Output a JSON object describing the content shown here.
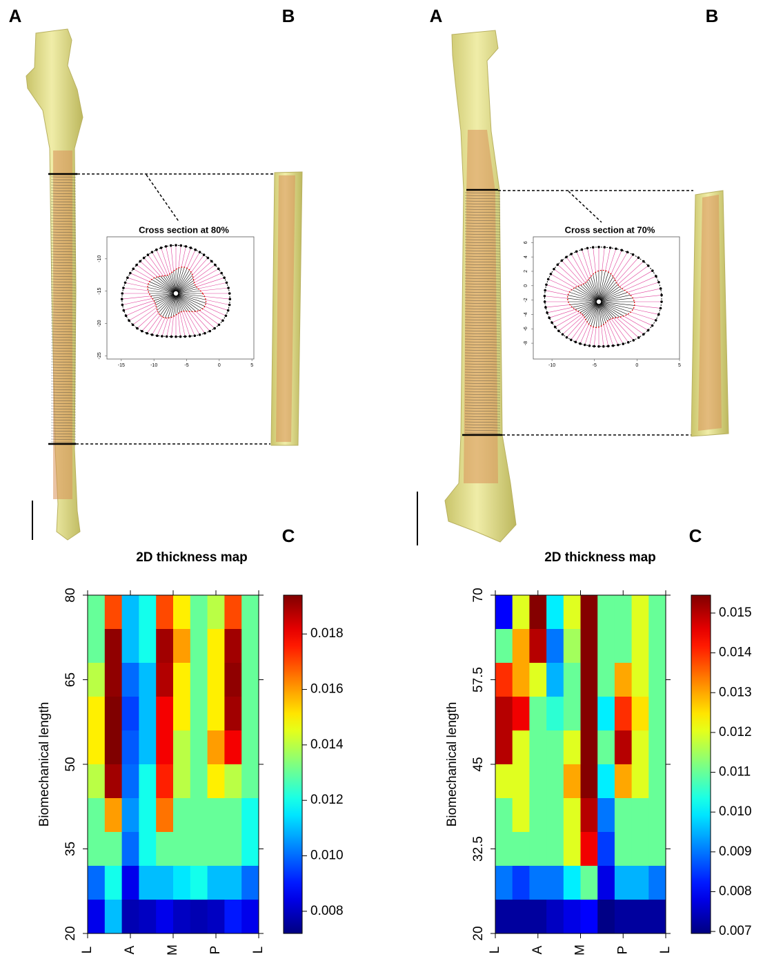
{
  "figure": {
    "left": {
      "panel_a": "A",
      "panel_b": "B",
      "panel_c": "C"
    },
    "right": {
      "panel_a": "A",
      "panel_b": "B",
      "panel_c": "C"
    }
  },
  "cross_sections": [
    {
      "title": "Cross section at 80%",
      "xlim": [
        -17.2,
        5.3
      ],
      "xticks": [
        -15,
        -10,
        -5,
        0,
        5
      ],
      "ylim": [
        -25.5,
        -6.6
      ],
      "yticks": [
        -10,
        -15,
        -20,
        -25
      ]
    },
    {
      "title": "Cross section at 70%",
      "xlim": [
        -12.2,
        5
      ],
      "xticks": [
        -10,
        -5,
        0,
        5
      ],
      "ylim": [
        -10.2,
        6.8
      ],
      "yticks": [
        6,
        4,
        2,
        0,
        -2,
        -4,
        -6,
        -8
      ]
    }
  ],
  "chart_data": [
    {
      "type": "heatmap",
      "title": "2D thickness map",
      "y_label": "Biomechanical length",
      "categories": [
        "L",
        "A",
        "M",
        "P",
        "L"
      ],
      "ylim": [
        20,
        80
      ],
      "yticks": [
        20,
        35,
        50,
        65,
        80
      ],
      "clim": [
        0.0072,
        0.0194
      ],
      "colorbar_ticks": [
        0.008,
        {
          "value": 0.01,
          "label": "0.010"
        },
        0.012,
        0.014,
        0.016,
        0.018
      ],
      "values": [
        [
          0.013,
          0.017,
          0.011,
          0.012,
          0.017,
          0.015,
          0.013,
          0.014,
          0.017,
          0.013
        ],
        [
          0.013,
          0.0192,
          0.011,
          0.012,
          0.019,
          0.016,
          0.013,
          0.015,
          0.019,
          0.013
        ],
        [
          0.014,
          0.0192,
          0.01,
          0.011,
          0.0188,
          0.015,
          0.013,
          0.015,
          0.0192,
          0.013
        ],
        [
          0.015,
          0.0194,
          0.0095,
          0.011,
          0.018,
          0.015,
          0.013,
          0.015,
          0.019,
          0.013
        ],
        [
          0.015,
          0.0194,
          0.0098,
          0.011,
          0.018,
          0.014,
          0.013,
          0.016,
          0.018,
          0.013
        ],
        [
          0.014,
          0.019,
          0.01,
          0.012,
          0.0175,
          0.014,
          0.013,
          0.015,
          0.014,
          0.013
        ],
        [
          0.013,
          0.016,
          0.0105,
          0.012,
          0.0165,
          0.013,
          0.013,
          0.013,
          0.013,
          0.012
        ],
        [
          0.013,
          0.013,
          0.01,
          0.012,
          0.013,
          0.013,
          0.013,
          0.013,
          0.013,
          0.012
        ],
        [
          0.01,
          0.012,
          0.0085,
          0.011,
          0.011,
          0.0115,
          0.012,
          0.011,
          0.011,
          0.01
        ],
        [
          0.0085,
          0.011,
          0.0078,
          0.008,
          0.0085,
          0.008,
          0.0078,
          0.008,
          0.009,
          0.0085
        ]
      ]
    },
    {
      "type": "heatmap",
      "title": "2D thickness map",
      "y_label": "Biomechanical length",
      "categories": [
        "L",
        "A",
        "M",
        "P",
        "L"
      ],
      "ylim": [
        20,
        70
      ],
      "yticks": [
        20,
        32.5,
        45,
        57.5,
        70
      ],
      "clim": [
        0.00695,
        0.01545
      ],
      "colorbar_ticks": [
        0.007,
        0.008,
        0.009,
        {
          "value": 0.01,
          "label": "0.010"
        },
        0.011,
        0.012,
        0.013,
        0.014,
        0.015
      ],
      "values": [
        [
          0.008,
          0.012,
          0.0154,
          0.01,
          0.012,
          0.0154,
          0.011,
          0.011,
          0.012,
          0.011
        ],
        [
          0.011,
          0.013,
          0.015,
          0.009,
          0.0115,
          0.0154,
          0.011,
          0.011,
          0.012,
          0.011
        ],
        [
          0.014,
          0.013,
          0.012,
          0.0095,
          0.011,
          0.0154,
          0.011,
          0.013,
          0.012,
          0.011
        ],
        [
          0.015,
          0.0145,
          0.011,
          0.0105,
          0.011,
          0.0154,
          0.01,
          0.014,
          0.0125,
          0.011
        ],
        [
          0.015,
          0.012,
          0.011,
          0.011,
          0.012,
          0.0154,
          0.011,
          0.015,
          0.012,
          0.011
        ],
        [
          0.012,
          0.012,
          0.011,
          0.011,
          0.013,
          0.0154,
          0.01,
          0.013,
          0.012,
          0.011
        ],
        [
          0.011,
          0.012,
          0.011,
          0.011,
          0.012,
          0.015,
          0.009,
          0.011,
          0.011,
          0.011
        ],
        [
          0.011,
          0.011,
          0.011,
          0.011,
          0.012,
          0.0145,
          0.0085,
          0.011,
          0.011,
          0.011
        ],
        [
          0.009,
          0.0085,
          0.009,
          0.009,
          0.01,
          0.011,
          0.0078,
          0.0095,
          0.0095,
          0.009
        ],
        [
          0.0072,
          0.0072,
          0.0072,
          0.0075,
          0.0078,
          0.008,
          0.007,
          0.0072,
          0.0072,
          0.0072
        ]
      ]
    }
  ]
}
